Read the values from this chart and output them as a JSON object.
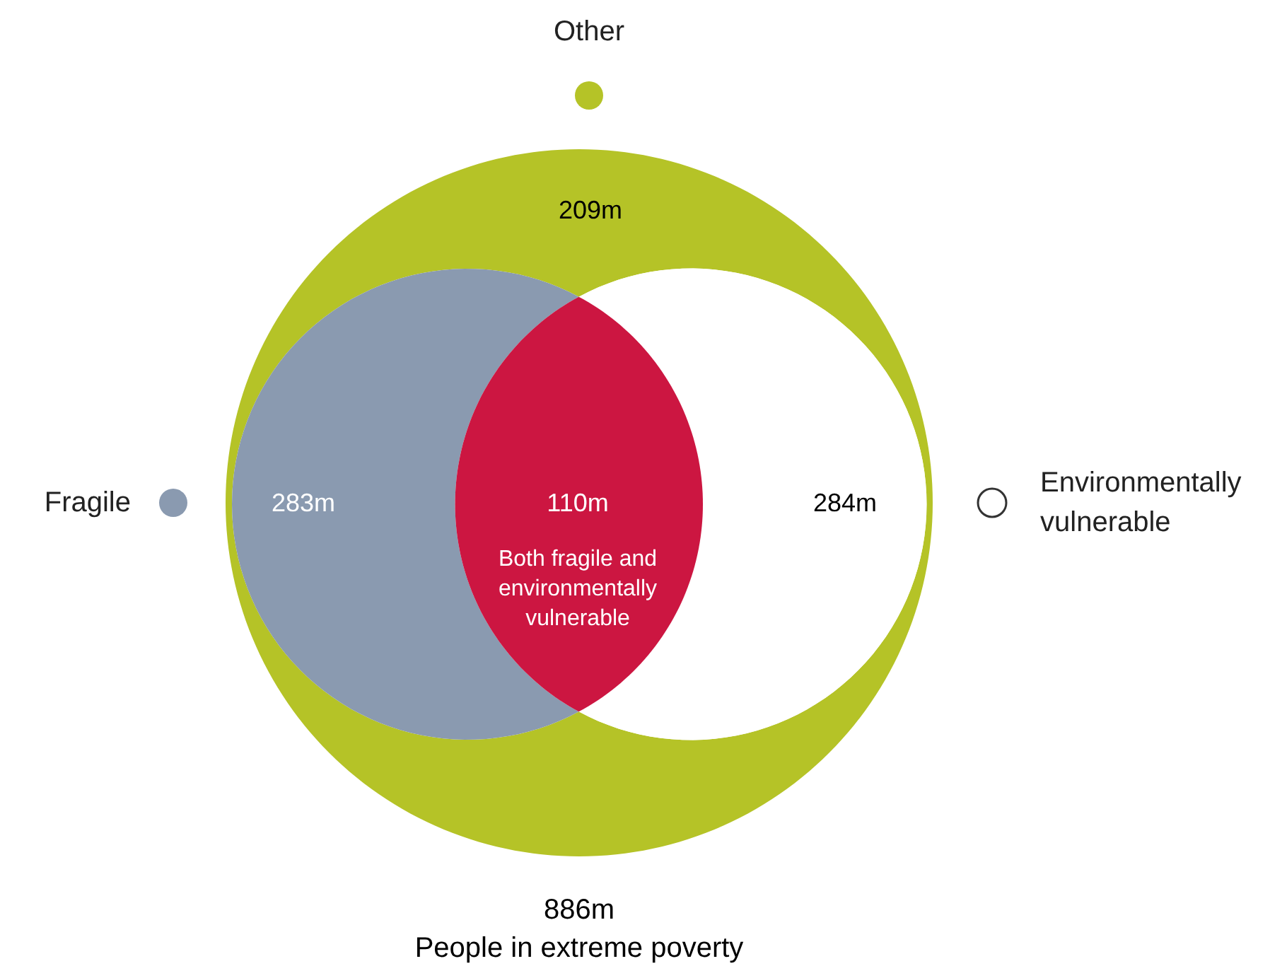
{
  "chart_data": {
    "type": "other",
    "categories": [
      "Other",
      "Fragile",
      "Environmentally vulnerable",
      "Both fragile and environmentally vulnerable"
    ],
    "values": [
      209,
      283,
      284,
      110
    ],
    "value_labels": [
      "209m",
      "283m",
      "284m",
      "110m"
    ],
    "colors": [
      "#b5c327",
      "#8a9ab0",
      "#ffffff",
      "#cc1641"
    ],
    "annotations": [
      "886m",
      "People in extreme poverty"
    ]
  }
}
